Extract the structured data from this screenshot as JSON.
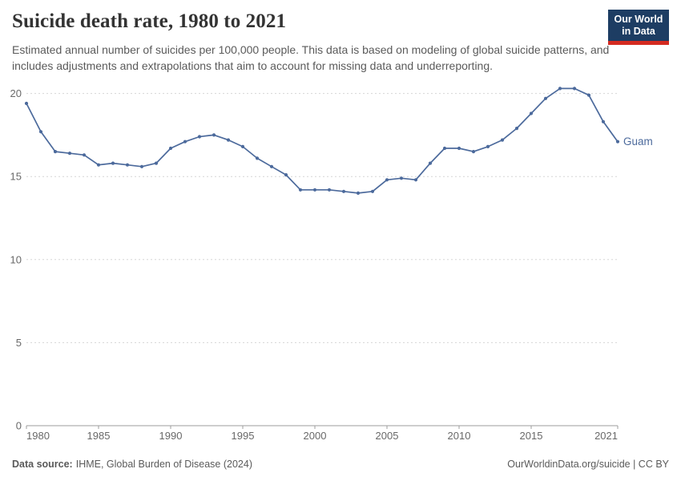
{
  "header": {
    "title": "Suicide death rate, 1980 to 2021",
    "subtitle": "Estimated annual number of suicides per 100,000 people. This data is based on modeling of global suicide patterns, and includes adjustments and extrapolations that aim to account for missing data and underreporting."
  },
  "logo": {
    "line1": "Our World",
    "line2": "in Data",
    "bg_color": "#1d3d63",
    "accent_color": "#d42b21"
  },
  "footer": {
    "source_label": "Data source:",
    "source_text": "IHME, Global Burden of Disease (2024)",
    "credit": "OurWorldinData.org/suicide | CC BY"
  },
  "chart_data": {
    "type": "line",
    "title": "Suicide death rate, 1980 to 2021",
    "xlabel": "",
    "ylabel": "",
    "x": [
      1980,
      1981,
      1982,
      1983,
      1984,
      1985,
      1986,
      1987,
      1988,
      1989,
      1990,
      1991,
      1992,
      1993,
      1994,
      1995,
      1996,
      1997,
      1998,
      1999,
      2000,
      2001,
      2002,
      2003,
      2004,
      2005,
      2006,
      2007,
      2008,
      2009,
      2010,
      2011,
      2012,
      2013,
      2014,
      2015,
      2016,
      2017,
      2018,
      2019,
      2020,
      2021
    ],
    "series": [
      {
        "name": "Guam",
        "color": "#4C6A9C",
        "values": [
          19.4,
          17.7,
          16.5,
          16.4,
          16.3,
          15.7,
          15.8,
          15.7,
          15.6,
          15.8,
          16.7,
          17.1,
          17.4,
          17.5,
          17.2,
          16.8,
          16.1,
          15.6,
          15.1,
          14.2,
          14.2,
          14.2,
          14.1,
          14.0,
          14.1,
          14.8,
          14.9,
          14.8,
          15.8,
          16.7,
          16.7,
          16.5,
          16.8,
          17.2,
          17.9,
          18.8,
          19.7,
          20.3,
          20.3,
          19.9,
          18.3,
          17.1
        ]
      }
    ],
    "xlim": [
      1980,
      2021
    ],
    "ylim": [
      0,
      20
    ],
    "yticks": [
      0,
      5,
      10,
      15,
      20
    ],
    "xticks": [
      1980,
      1985,
      1990,
      1995,
      2000,
      2005,
      2010,
      2015,
      2021
    ],
    "grid": "horizontal-dashed",
    "legend_position": "end-of-line-label",
    "end_label": "Guam",
    "grid_color": "#d5d5d5",
    "axis_color": "#9e9e9e",
    "tick_label_color": "#696969"
  }
}
